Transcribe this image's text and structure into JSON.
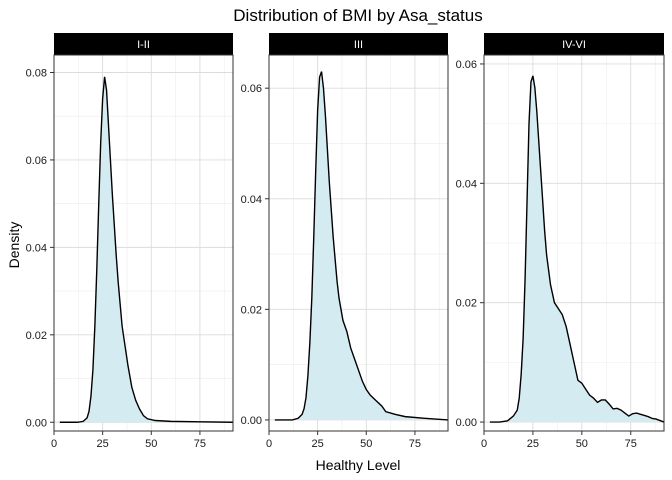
{
  "chart_data": {
    "type": "area",
    "title": "Distribution of BMI by Asa_status",
    "xlabel": "Healthy Level",
    "ylabel": "Density",
    "xlim": [
      0,
      92
    ],
    "x_ticks": [
      0,
      25,
      50,
      75
    ],
    "grid": true,
    "fill_color": "#d4ebf2",
    "line_color": "#000000",
    "strip_color": "#000000",
    "panels": [
      {
        "label": "I-II",
        "ylim": [
          -0.002,
          0.084
        ],
        "y_ticks": [
          0.0,
          0.02,
          0.04,
          0.06,
          0.08
        ],
        "y_tick_labels": [
          "0.00",
          "0.02",
          "0.04",
          "0.06",
          "0.08"
        ],
        "x": [
          3,
          8,
          12,
          15,
          17,
          18,
          19,
          20,
          21,
          22,
          23,
          24,
          25,
          26,
          27,
          28,
          29,
          30,
          31,
          32,
          33,
          34,
          35,
          36,
          37,
          38,
          40,
          42,
          44,
          46,
          48,
          52,
          60,
          75,
          92
        ],
        "y": [
          0.0,
          0.0,
          0.0,
          0.0002,
          0.001,
          0.0025,
          0.006,
          0.012,
          0.022,
          0.035,
          0.05,
          0.064,
          0.074,
          0.079,
          0.076,
          0.068,
          0.06,
          0.052,
          0.045,
          0.038,
          0.032,
          0.027,
          0.022,
          0.019,
          0.016,
          0.013,
          0.008,
          0.005,
          0.003,
          0.0015,
          0.0008,
          0.0004,
          0.0002,
          0.0001,
          0.0
        ]
      },
      {
        "label": "III",
        "ylim": [
          -0.002,
          0.066
        ],
        "y_ticks": [
          0.0,
          0.02,
          0.04,
          0.06
        ],
        "y_tick_labels": [
          "0.00",
          "0.02",
          "0.04",
          "0.06"
        ],
        "x": [
          3,
          8,
          12,
          15,
          17,
          18,
          19,
          20,
          21,
          22,
          23,
          24,
          25,
          26,
          27,
          28,
          29,
          30,
          31,
          32,
          33,
          34,
          35,
          36,
          37,
          38,
          40,
          42,
          44,
          46,
          48,
          50,
          52,
          55,
          58,
          60,
          65,
          70,
          80,
          92
        ],
        "y": [
          0.0,
          0.0,
          0.0,
          0.0003,
          0.001,
          0.002,
          0.004,
          0.008,
          0.014,
          0.022,
          0.033,
          0.045,
          0.056,
          0.062,
          0.063,
          0.06,
          0.055,
          0.049,
          0.043,
          0.038,
          0.033,
          0.029,
          0.025,
          0.022,
          0.02,
          0.018,
          0.016,
          0.013,
          0.011,
          0.009,
          0.007,
          0.0055,
          0.0045,
          0.0035,
          0.0025,
          0.0015,
          0.001,
          0.0006,
          0.0003,
          0.0
        ]
      },
      {
        "label": "IV-VI",
        "ylim": [
          -0.0015,
          0.0615
        ],
        "y_ticks": [
          0.0,
          0.02,
          0.04,
          0.06
        ],
        "y_tick_labels": [
          "0.00",
          "0.02",
          "0.04",
          "0.06"
        ],
        "x": [
          3,
          8,
          12,
          15,
          17,
          18,
          19,
          20,
          21,
          22,
          23,
          24,
          25,
          26,
          27,
          28,
          29,
          30,
          31,
          32,
          34,
          36,
          38,
          40,
          42,
          44,
          46,
          48,
          50,
          52,
          54,
          56,
          58,
          60,
          62,
          64,
          66,
          68,
          70,
          72,
          74,
          76,
          78,
          80,
          82,
          84,
          86,
          88,
          92
        ],
        "y": [
          0.0,
          0.0,
          0.0002,
          0.001,
          0.002,
          0.004,
          0.008,
          0.014,
          0.024,
          0.037,
          0.05,
          0.057,
          0.058,
          0.056,
          0.052,
          0.047,
          0.042,
          0.037,
          0.032,
          0.028,
          0.023,
          0.02,
          0.019,
          0.018,
          0.016,
          0.013,
          0.01,
          0.007,
          0.0065,
          0.0055,
          0.0045,
          0.004,
          0.0033,
          0.0037,
          0.0037,
          0.003,
          0.0022,
          0.0023,
          0.002,
          0.0015,
          0.001,
          0.0014,
          0.0015,
          0.0013,
          0.0011,
          0.0009,
          0.0006,
          0.0005,
          0.0
        ]
      }
    ]
  }
}
